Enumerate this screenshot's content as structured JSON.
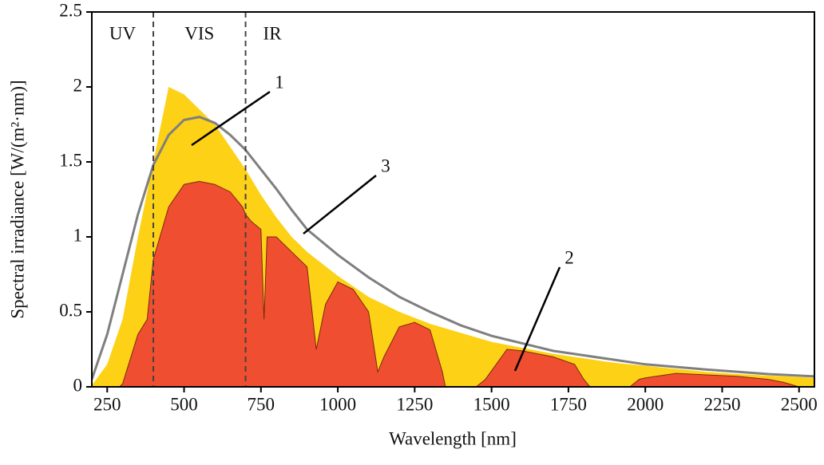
{
  "chart_data": {
    "type": "area",
    "x_label": "Wavelength [nm]",
    "y_label": "Spectral irradiance [W/(m²·nm)]",
    "xlim": [
      200,
      2550
    ],
    "ylim": [
      0,
      2.5
    ],
    "xticks": [
      250,
      500,
      750,
      1000,
      1250,
      1500,
      1750,
      2000,
      2250,
      2500
    ],
    "yticks": [
      0,
      0.5,
      1,
      1.5,
      2,
      2.5
    ],
    "region_labels": [
      "UV",
      "VIS",
      "IR"
    ],
    "region_boundaries": [
      400,
      700
    ],
    "series": [
      {
        "name": "1",
        "style": "area",
        "color": "#fcd116",
        "x": [
          200,
          250,
          300,
          350,
          400,
          450,
          500,
          550,
          600,
          650,
          700,
          750,
          800,
          850,
          900,
          950,
          1000,
          1100,
          1200,
          1300,
          1400,
          1500,
          1600,
          1700,
          1800,
          1900,
          2000,
          2100,
          2200,
          2300,
          2400,
          2500,
          2550
        ],
        "values": [
          0.01,
          0.15,
          0.45,
          1.0,
          1.5,
          2.0,
          1.95,
          1.85,
          1.75,
          1.6,
          1.45,
          1.28,
          1.13,
          1.0,
          0.9,
          0.82,
          0.74,
          0.6,
          0.5,
          0.42,
          0.36,
          0.3,
          0.26,
          0.22,
          0.19,
          0.16,
          0.14,
          0.12,
          0.1,
          0.085,
          0.075,
          0.065,
          0.06
        ]
      },
      {
        "name": "2",
        "style": "area",
        "color": "#f04e30",
        "x": [
          290,
          300,
          350,
          380,
          400,
          450,
          500,
          550,
          600,
          650,
          690,
          700,
          720,
          750,
          760,
          770,
          800,
          850,
          900,
          930,
          960,
          1000,
          1050,
          1100,
          1130,
          1150,
          1200,
          1250,
          1300,
          1340,
          1350,
          1450,
          1480,
          1550,
          1600,
          1700,
          1770,
          1800,
          1820,
          1950,
          1980,
          2000,
          2100,
          2200,
          2300,
          2400,
          2450,
          2500
        ],
        "values": [
          0,
          0.02,
          0.35,
          0.45,
          0.85,
          1.2,
          1.35,
          1.37,
          1.35,
          1.3,
          1.2,
          1.15,
          1.1,
          1.05,
          0.45,
          1.0,
          1.0,
          0.9,
          0.8,
          0.25,
          0.55,
          0.7,
          0.65,
          0.5,
          0.1,
          0.2,
          0.4,
          0.43,
          0.38,
          0.1,
          0,
          0,
          0.05,
          0.25,
          0.24,
          0.2,
          0.15,
          0.05,
          0,
          0,
          0.05,
          0.06,
          0.09,
          0.08,
          0.07,
          0.05,
          0.03,
          0
        ]
      },
      {
        "name": "3",
        "style": "line",
        "color": "#7f7f7f",
        "x": [
          200,
          250,
          300,
          350,
          400,
          450,
          500,
          550,
          600,
          650,
          700,
          750,
          800,
          850,
          900,
          1000,
          1100,
          1200,
          1300,
          1400,
          1500,
          1600,
          1700,
          1800,
          1900,
          2000,
          2200,
          2400,
          2550
        ],
        "values": [
          0.05,
          0.35,
          0.75,
          1.15,
          1.48,
          1.68,
          1.78,
          1.8,
          1.76,
          1.68,
          1.58,
          1.45,
          1.32,
          1.18,
          1.05,
          0.88,
          0.73,
          0.6,
          0.5,
          0.41,
          0.34,
          0.29,
          0.24,
          0.21,
          0.18,
          0.15,
          0.115,
          0.085,
          0.07
        ]
      }
    ]
  }
}
